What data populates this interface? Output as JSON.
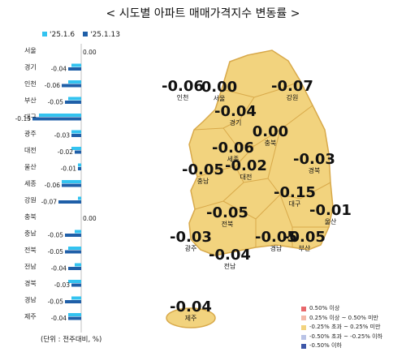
{
  "title": "< 시도별 아파트 매매가격지수 변동률 >",
  "unit_note": "(단위 : 전주대비, %)",
  "chart_data": [
    {
      "type": "bar",
      "orientation": "horizontal",
      "legend": [
        "'25.1.6",
        "'25.1.13"
      ],
      "legend_position": "top",
      "colors": {
        "'25.1.6": "#33c3f0",
        "'25.1.13": "#1f5fa8"
      },
      "categories": [
        "서울",
        "경기",
        "인천",
        "부산",
        "대구",
        "광주",
        "대전",
        "울산",
        "세종",
        "강원",
        "충북",
        "충남",
        "전북",
        "전남",
        "경북",
        "경남",
        "제주"
      ],
      "series": [
        {
          "name": "'25.1.6",
          "values": [
            0.0,
            -0.03,
            -0.04,
            -0.04,
            -0.13,
            -0.03,
            -0.03,
            -0.01,
            -0.06,
            -0.01,
            0.0,
            -0.02,
            -0.04,
            -0.02,
            -0.04,
            -0.03,
            -0.04
          ]
        },
        {
          "name": "'25.1.13",
          "values": [
            0.0,
            -0.04,
            -0.06,
            -0.05,
            -0.15,
            -0.03,
            -0.02,
            -0.01,
            -0.06,
            -0.07,
            0.0,
            -0.05,
            -0.05,
            -0.04,
            -0.03,
            -0.05,
            -0.04
          ]
        }
      ],
      "labels": [
        "0.00",
        "-0.04",
        "-0.06",
        "-0.05",
        "-0.15",
        "-0.03",
        "-0.02",
        "-0.01",
        "-0.06",
        "-0.07",
        "0.00",
        "-0.05",
        "-0.05",
        "-0.04",
        "-0.03",
        "-0.05",
        "-0.04"
      ]
    },
    {
      "type": "map",
      "regions": [
        {
          "name": "서울",
          "value": "0.00"
        },
        {
          "name": "인천",
          "value": "-0.06"
        },
        {
          "name": "경기",
          "value": "-0.04"
        },
        {
          "name": "강원",
          "value": "-0.07"
        },
        {
          "name": "충북",
          "value": "0.00"
        },
        {
          "name": "세종",
          "value": "-0.06"
        },
        {
          "name": "대전",
          "value": "-0.02"
        },
        {
          "name": "충남",
          "value": "-0.05"
        },
        {
          "name": "경북",
          "value": "-0.03"
        },
        {
          "name": "대구",
          "value": "-0.15"
        },
        {
          "name": "울산",
          "value": "-0.01"
        },
        {
          "name": "전북",
          "value": "-0.05"
        },
        {
          "name": "광주",
          "value": "-0.03"
        },
        {
          "name": "전남",
          "value": "-0.04"
        },
        {
          "name": "경남",
          "value": "-0.05"
        },
        {
          "name": "부산",
          "value": "-0.05"
        },
        {
          "name": "제주",
          "value": "-0.04"
        }
      ],
      "legend_position": "bottom-right",
      "legend": [
        {
          "label": "0.50% 이상",
          "color": "#e8676b"
        },
        {
          "label": "0.25% 이상 ~ 0.50% 미만",
          "color": "#f4b8a8"
        },
        {
          "label": "-0.25% 초과 ~ 0.25% 미만",
          "color": "#f2d37e"
        },
        {
          "label": "-0.50% 초과 ~ -0.25% 이하",
          "color": "#b9c3e6"
        },
        {
          "label": "-0.50% 이하",
          "color": "#3d57a8"
        }
      ],
      "fill_color": "#f2d37e"
    }
  ]
}
